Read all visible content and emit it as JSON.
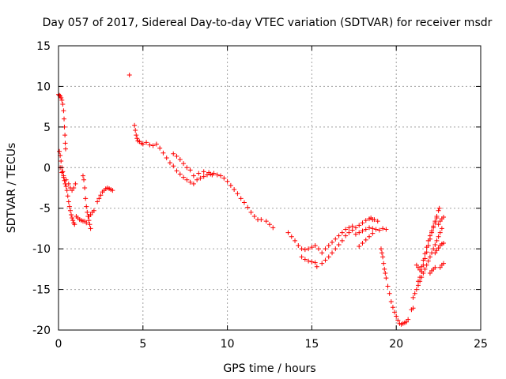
{
  "chart_data": {
    "type": "scatter",
    "title": "Day 057 of 2017, Sidereal Day-to-day VTEC variation (SDTVAR) for receiver msdr",
    "xlabel": "GPS time / hours",
    "ylabel": "SDTVAR / TECUs",
    "xlim": [
      0,
      25
    ],
    "ylim": [
      -20,
      15
    ],
    "xticks": [
      0,
      5,
      10,
      15,
      20,
      25
    ],
    "yticks": [
      -20,
      -15,
      -10,
      -5,
      0,
      5,
      10,
      15
    ],
    "xtick_labels": [
      "0",
      "5",
      "10",
      "15",
      "20",
      "25"
    ],
    "ytick_labels": [
      "-20",
      "-15",
      "-10",
      "-5",
      "0",
      "5",
      "10",
      "15"
    ],
    "grid": true,
    "marker": "plus",
    "color": "#ff0000",
    "series": [
      {
        "points": [
          [
            0.0,
            9.0
          ],
          [
            0.05,
            8.9
          ],
          [
            0.1,
            8.8
          ],
          [
            0.15,
            8.6
          ],
          [
            0.2,
            8.3
          ],
          [
            0.25,
            7.8
          ],
          [
            0.3,
            7.0
          ],
          [
            0.33,
            6.0
          ],
          [
            0.35,
            5.0
          ],
          [
            0.38,
            4.0
          ],
          [
            0.4,
            3.0
          ],
          [
            0.42,
            2.3
          ],
          [
            0.05,
            2.0
          ],
          [
            0.1,
            1.5
          ],
          [
            0.15,
            0.8
          ],
          [
            0.2,
            0.0
          ],
          [
            0.25,
            -0.5
          ],
          [
            0.3,
            -1.0
          ],
          [
            0.35,
            -1.6
          ],
          [
            0.4,
            -2.0
          ],
          [
            0.45,
            -2.3
          ],
          [
            0.5,
            -2.8
          ],
          [
            0.55,
            -3.5
          ],
          [
            0.6,
            -4.2
          ],
          [
            0.65,
            -4.8
          ],
          [
            0.7,
            -5.3
          ],
          [
            0.75,
            -5.8
          ],
          [
            0.8,
            -6.2
          ],
          [
            0.85,
            -6.5
          ],
          [
            0.9,
            -6.8
          ],
          [
            0.95,
            -7.0
          ],
          [
            0.1,
            0.0
          ],
          [
            0.2,
            -0.6
          ],
          [
            0.3,
            -1.2
          ],
          [
            0.45,
            -1.5
          ],
          [
            0.6,
            -2.0
          ],
          [
            0.7,
            -2.5
          ],
          [
            0.8,
            -2.8
          ],
          [
            0.9,
            -2.5
          ],
          [
            1.0,
            -2.0
          ],
          [
            1.05,
            -6.0
          ],
          [
            1.15,
            -6.2
          ],
          [
            1.25,
            -6.4
          ],
          [
            1.35,
            -6.5
          ],
          [
            1.45,
            -6.6
          ],
          [
            1.55,
            -6.6
          ],
          [
            1.65,
            -6.8
          ],
          [
            1.45,
            -1.0
          ],
          [
            1.5,
            -1.5
          ],
          [
            1.55,
            -2.5
          ],
          [
            1.6,
            -3.8
          ],
          [
            1.65,
            -4.8
          ],
          [
            1.7,
            -5.5
          ],
          [
            1.75,
            -6.0
          ],
          [
            1.8,
            -6.5
          ],
          [
            1.85,
            -7.0
          ],
          [
            1.9,
            -7.5
          ],
          [
            1.8,
            -6.0
          ],
          [
            1.9,
            -5.8
          ],
          [
            2.0,
            -5.5
          ],
          [
            2.1,
            -5.3
          ],
          [
            2.3,
            -4.2
          ],
          [
            2.4,
            -3.8
          ],
          [
            2.5,
            -3.4
          ],
          [
            2.6,
            -3.0
          ],
          [
            2.7,
            -2.8
          ],
          [
            2.8,
            -2.6
          ],
          [
            2.9,
            -2.5
          ],
          [
            3.0,
            -2.6
          ],
          [
            3.1,
            -2.7
          ],
          [
            3.2,
            -2.8
          ],
          [
            4.2,
            11.4
          ],
          [
            4.5,
            5.2
          ],
          [
            4.55,
            4.6
          ],
          [
            4.6,
            4.0
          ],
          [
            4.65,
            3.6
          ],
          [
            4.7,
            3.3
          ],
          [
            4.8,
            3.2
          ],
          [
            4.9,
            3.0
          ],
          [
            5.0,
            2.9
          ],
          [
            5.2,
            3.1
          ],
          [
            5.4,
            2.8
          ],
          [
            5.6,
            2.7
          ],
          [
            5.8,
            2.9
          ],
          [
            6.0,
            2.4
          ],
          [
            6.2,
            1.8
          ],
          [
            6.4,
            1.2
          ],
          [
            6.6,
            0.6
          ],
          [
            6.8,
            0.2
          ],
          [
            7.0,
            -0.4
          ],
          [
            7.2,
            -0.8
          ],
          [
            7.4,
            -1.2
          ],
          [
            7.6,
            -1.5
          ],
          [
            7.8,
            -1.8
          ],
          [
            8.0,
            -2.0
          ],
          [
            6.8,
            1.7
          ],
          [
            7.0,
            1.4
          ],
          [
            7.2,
            1.0
          ],
          [
            7.4,
            0.5
          ],
          [
            7.6,
            0.0
          ],
          [
            7.8,
            -0.3
          ],
          [
            8.2,
            -1.5
          ],
          [
            8.4,
            -1.3
          ],
          [
            8.6,
            -1.1
          ],
          [
            8.8,
            -0.9
          ],
          [
            9.0,
            -0.8
          ],
          [
            9.2,
            -0.7
          ],
          [
            9.4,
            -0.9
          ],
          [
            9.6,
            -1.0
          ],
          [
            9.8,
            -1.3
          ],
          [
            10.0,
            -1.7
          ],
          [
            10.2,
            -2.2
          ],
          [
            8.0,
            -1.0
          ],
          [
            8.3,
            -0.7
          ],
          [
            8.6,
            -0.5
          ],
          [
            8.9,
            -0.6
          ],
          [
            9.1,
            -0.9
          ],
          [
            10.4,
            -2.7
          ],
          [
            10.6,
            -3.2
          ],
          [
            10.8,
            -3.8
          ],
          [
            11.0,
            -4.3
          ],
          [
            11.2,
            -4.9
          ],
          [
            11.4,
            -5.5
          ],
          [
            11.6,
            -6.0
          ],
          [
            11.8,
            -6.4
          ],
          [
            12.0,
            -6.4
          ],
          [
            12.3,
            -6.6
          ],
          [
            12.5,
            -7.0
          ],
          [
            12.7,
            -7.4
          ],
          [
            13.6,
            -8.0
          ],
          [
            13.8,
            -8.5
          ],
          [
            14.0,
            -9.0
          ],
          [
            14.2,
            -9.6
          ],
          [
            14.4,
            -10.0
          ],
          [
            14.6,
            -10.1
          ],
          [
            14.8,
            -10.0
          ],
          [
            15.0,
            -9.8
          ],
          [
            15.2,
            -9.6
          ],
          [
            15.4,
            -10.0
          ],
          [
            14.4,
            -11.0
          ],
          [
            14.6,
            -11.3
          ],
          [
            14.8,
            -11.5
          ],
          [
            15.0,
            -11.6
          ],
          [
            15.2,
            -11.7
          ],
          [
            15.3,
            -12.2
          ],
          [
            15.6,
            -11.8
          ],
          [
            15.8,
            -11.4
          ],
          [
            16.0,
            -11.0
          ],
          [
            16.2,
            -10.5
          ],
          [
            16.4,
            -10.0
          ],
          [
            16.6,
            -9.5
          ],
          [
            16.8,
            -9.0
          ],
          [
            17.0,
            -8.4
          ],
          [
            17.2,
            -8.0
          ],
          [
            17.4,
            -7.7
          ],
          [
            17.6,
            -7.4
          ],
          [
            17.8,
            -7.1
          ],
          [
            18.0,
            -6.8
          ],
          [
            18.2,
            -6.5
          ],
          [
            18.4,
            -6.3
          ],
          [
            18.6,
            -6.4
          ],
          [
            15.6,
            -10.5
          ],
          [
            15.8,
            -10.0
          ],
          [
            16.0,
            -9.6
          ],
          [
            16.2,
            -9.2
          ],
          [
            16.4,
            -8.8
          ],
          [
            16.6,
            -8.4
          ],
          [
            16.8,
            -8.0
          ],
          [
            17.0,
            -7.6
          ],
          [
            17.2,
            -7.4
          ],
          [
            17.4,
            -7.2
          ],
          [
            17.6,
            -8.2
          ],
          [
            17.8,
            -8.0
          ],
          [
            18.0,
            -7.8
          ],
          [
            18.2,
            -7.6
          ],
          [
            18.4,
            -7.4
          ],
          [
            18.6,
            -7.5
          ],
          [
            18.8,
            -7.6
          ],
          [
            19.0,
            -7.7
          ],
          [
            19.2,
            -7.5
          ],
          [
            19.4,
            -7.6
          ],
          [
            17.8,
            -9.7
          ],
          [
            18.0,
            -9.3
          ],
          [
            18.2,
            -8.9
          ],
          [
            18.4,
            -8.5
          ],
          [
            18.6,
            -8.1
          ],
          [
            18.5,
            -6.2
          ],
          [
            18.7,
            -6.4
          ],
          [
            18.9,
            -6.6
          ],
          [
            19.1,
            -10.0
          ],
          [
            19.15,
            -10.5
          ],
          [
            19.2,
            -11.0
          ],
          [
            19.25,
            -11.8
          ],
          [
            19.3,
            -12.5
          ],
          [
            19.35,
            -13.0
          ],
          [
            19.4,
            -13.6
          ],
          [
            19.5,
            -14.6
          ],
          [
            19.6,
            -15.5
          ],
          [
            19.7,
            -16.5
          ],
          [
            19.8,
            -17.2
          ],
          [
            19.9,
            -17.8
          ],
          [
            20.0,
            -18.3
          ],
          [
            20.1,
            -18.8
          ],
          [
            20.2,
            -19.2
          ],
          [
            20.3,
            -19.3
          ],
          [
            20.4,
            -19.2
          ],
          [
            20.5,
            -19.1
          ],
          [
            20.6,
            -19.0
          ],
          [
            20.7,
            -18.7
          ],
          [
            20.9,
            -17.5
          ],
          [
            21.0,
            -17.3
          ],
          [
            21.2,
            -12.0
          ],
          [
            21.3,
            -12.3
          ],
          [
            21.4,
            -12.6
          ],
          [
            21.0,
            -16.0
          ],
          [
            21.1,
            -15.5
          ],
          [
            21.2,
            -15.0
          ],
          [
            21.3,
            -14.5
          ],
          [
            21.4,
            -14.0
          ],
          [
            21.5,
            -13.5
          ],
          [
            21.6,
            -13.0
          ],
          [
            21.7,
            -12.5
          ],
          [
            21.8,
            -12.0
          ],
          [
            21.9,
            -11.5
          ],
          [
            22.0,
            -11.0
          ],
          [
            22.1,
            -10.5
          ],
          [
            22.2,
            -10.0
          ],
          [
            22.3,
            -9.5
          ],
          [
            22.4,
            -9.0
          ],
          [
            22.5,
            -8.5
          ],
          [
            22.6,
            -8.0
          ],
          [
            22.7,
            -7.5
          ],
          [
            21.3,
            -14.0
          ],
          [
            21.4,
            -13.5
          ],
          [
            21.5,
            -12.8
          ],
          [
            21.6,
            -12.0
          ],
          [
            21.7,
            -11.2
          ],
          [
            21.8,
            -10.4
          ],
          [
            21.9,
            -9.6
          ],
          [
            22.0,
            -8.8
          ],
          [
            22.1,
            -8.0
          ],
          [
            22.2,
            -7.4
          ],
          [
            22.3,
            -6.8
          ],
          [
            22.4,
            -6.0
          ],
          [
            22.5,
            -5.3
          ],
          [
            22.55,
            -5.0
          ],
          [
            21.5,
            -12.2
          ],
          [
            21.6,
            -11.4
          ],
          [
            21.7,
            -10.6
          ],
          [
            21.8,
            -9.8
          ],
          [
            21.9,
            -9.0
          ],
          [
            22.0,
            -8.4
          ],
          [
            22.1,
            -7.8
          ],
          [
            22.2,
            -7.2
          ],
          [
            22.3,
            -6.6
          ],
          [
            22.4,
            -6.2
          ],
          [
            22.0,
            -13.0
          ],
          [
            22.1,
            -12.7
          ],
          [
            22.2,
            -12.5
          ],
          [
            22.3,
            -12.3
          ],
          [
            22.3,
            -10.5
          ],
          [
            22.4,
            -10.2
          ],
          [
            22.5,
            -9.9
          ],
          [
            22.6,
            -9.6
          ],
          [
            22.7,
            -9.4
          ],
          [
            22.8,
            -9.3
          ],
          [
            22.5,
            -7.0
          ],
          [
            22.6,
            -6.6
          ],
          [
            22.7,
            -6.3
          ],
          [
            22.8,
            -6.1
          ],
          [
            22.6,
            -12.3
          ],
          [
            22.7,
            -12.0
          ],
          [
            22.8,
            -11.8
          ]
        ]
      }
    ]
  }
}
